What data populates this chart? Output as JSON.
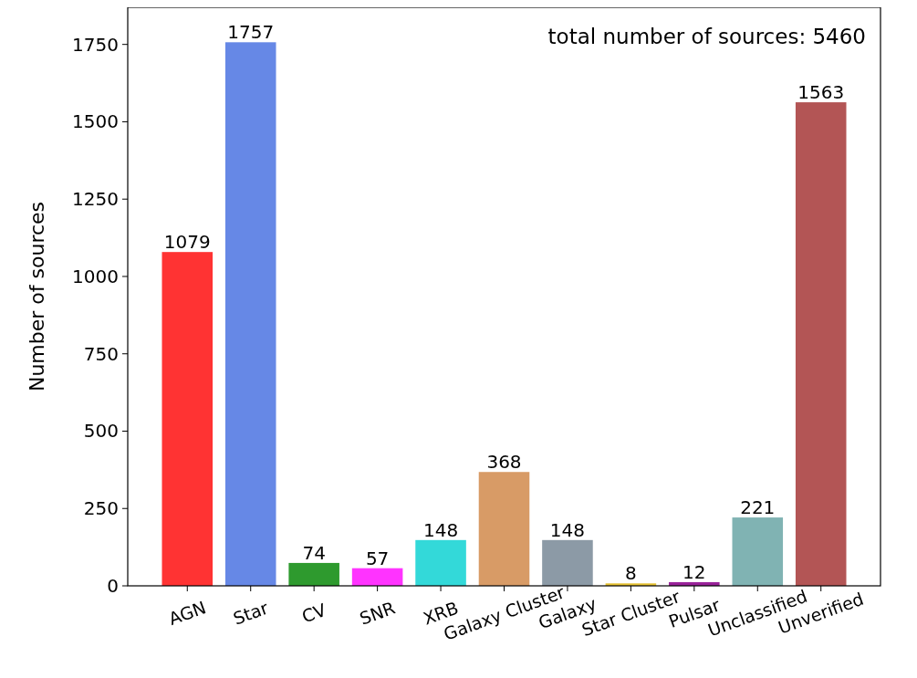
{
  "chart_data": {
    "type": "bar",
    "ylabel": "Number of sources",
    "categories": [
      "AGN",
      "Star",
      "CV",
      "SNR",
      "XRB",
      "Galaxy Cluster",
      "Galaxy",
      "Star Cluster",
      "Pulsar",
      "Unclassified",
      "Unverified"
    ],
    "values": [
      1079,
      1757,
      74,
      57,
      148,
      368,
      148,
      8,
      12,
      221,
      1563
    ],
    "colors": [
      "#ff3333",
      "#6688e6",
      "#2e9a2e",
      "#ff33ff",
      "#33d9d9",
      "#d89b66",
      "#8c9aa6",
      "#e6c233",
      "#992299",
      "#80b3b3",
      "#b35555"
    ],
    "ylim": [
      0,
      1870
    ],
    "yticks": [
      0,
      250,
      500,
      750,
      1000,
      1250,
      1500,
      1750
    ],
    "data_labels": true,
    "grid": false,
    "annotations": [
      "total number of sources: 5460"
    ]
  }
}
